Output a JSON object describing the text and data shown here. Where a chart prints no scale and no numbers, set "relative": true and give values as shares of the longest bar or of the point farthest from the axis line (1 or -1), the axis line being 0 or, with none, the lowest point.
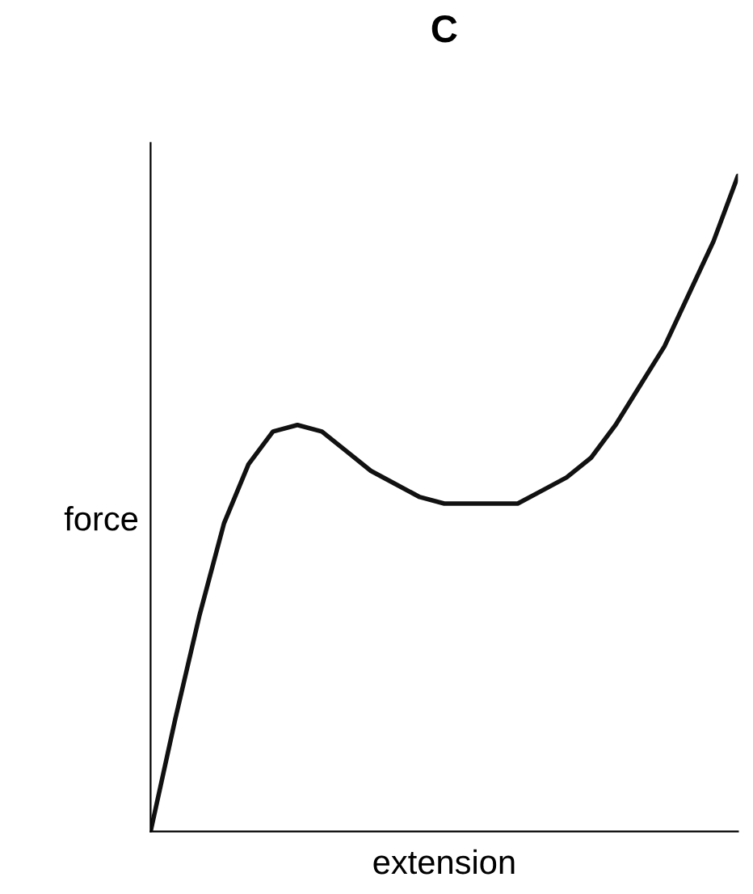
{
  "chart_data": {
    "type": "line",
    "title": "C",
    "xlabel": "extension",
    "ylabel": "force",
    "relative": true,
    "categories": [
      null,
      null,
      null,
      null,
      null,
      null,
      null,
      null,
      null,
      null,
      null,
      null,
      null,
      null,
      null,
      null,
      null,
      null,
      null,
      null,
      null,
      null,
      null,
      null,
      null
    ],
    "series": [
      {
        "color": "#111111",
        "values": [
          0,
          0.17,
          0.33,
          0.47,
          0.56,
          0.61,
          0.62,
          0.61,
          0.58,
          0.55,
          0.53,
          0.51,
          0.5,
          0.5,
          0.5,
          0.5,
          0.52,
          0.54,
          0.57,
          0.62,
          0.68,
          0.74,
          0.82,
          0.9,
          1.0
        ]
      }
    ]
  }
}
